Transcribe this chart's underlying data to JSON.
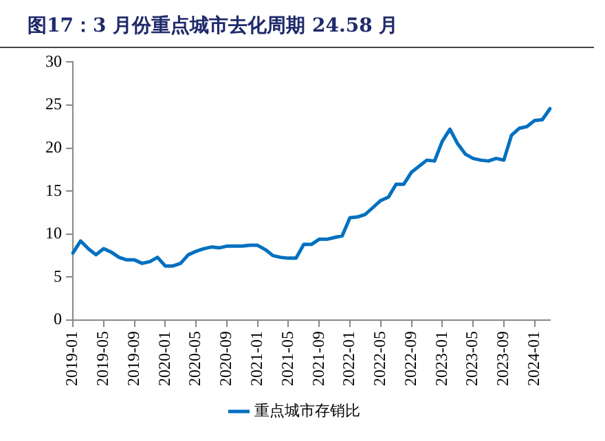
{
  "chart_data": {
    "type": "line",
    "title": "图17：3 月份重点城市去化周期 24.58 月",
    "categories": [
      "2019-01",
      null,
      null,
      null,
      "2019-05",
      null,
      null,
      null,
      "2019-09",
      null,
      null,
      null,
      "2020-01",
      null,
      null,
      null,
      "2020-05",
      null,
      null,
      null,
      "2020-09",
      null,
      null,
      null,
      "2021-01",
      null,
      null,
      null,
      "2021-05",
      null,
      null,
      null,
      "2021-09",
      null,
      null,
      null,
      "2022-01",
      null,
      null,
      null,
      "2022-05",
      null,
      null,
      null,
      "2022-09",
      null,
      null,
      null,
      "2023-01",
      null,
      null,
      null,
      "2023-05",
      null,
      null,
      null,
      "2023-09",
      null,
      null,
      null,
      "2024-01",
      null,
      null
    ],
    "series": [
      {
        "name": "重点城市存销比",
        "color": "#0070c0",
        "values": [
          7.8,
          9.2,
          8.3,
          7.6,
          8.3,
          7.9,
          7.3,
          7.0,
          7.0,
          6.6,
          6.8,
          7.3,
          6.3,
          6.3,
          6.6,
          7.6,
          8.0,
          8.3,
          8.5,
          8.4,
          8.6,
          8.6,
          8.6,
          8.7,
          8.7,
          8.2,
          7.5,
          7.3,
          7.2,
          7.2,
          8.8,
          8.8,
          9.4,
          9.4,
          9.6,
          9.8,
          11.9,
          12.0,
          12.3,
          13.1,
          13.9,
          14.3,
          15.8,
          15.8,
          17.2,
          17.9,
          18.6,
          18.5,
          20.8,
          22.2,
          20.5,
          19.3,
          18.8,
          18.6,
          18.5,
          18.8,
          18.6,
          21.5,
          22.3,
          22.5,
          23.2,
          23.3,
          24.58
        ]
      }
    ],
    "ylim": [
      0,
      30
    ],
    "yticks": [
      0,
      5,
      10,
      15,
      20,
      25,
      30
    ],
    "grid": false,
    "legend": "bottom",
    "marker": "none",
    "line_style": "solid"
  }
}
